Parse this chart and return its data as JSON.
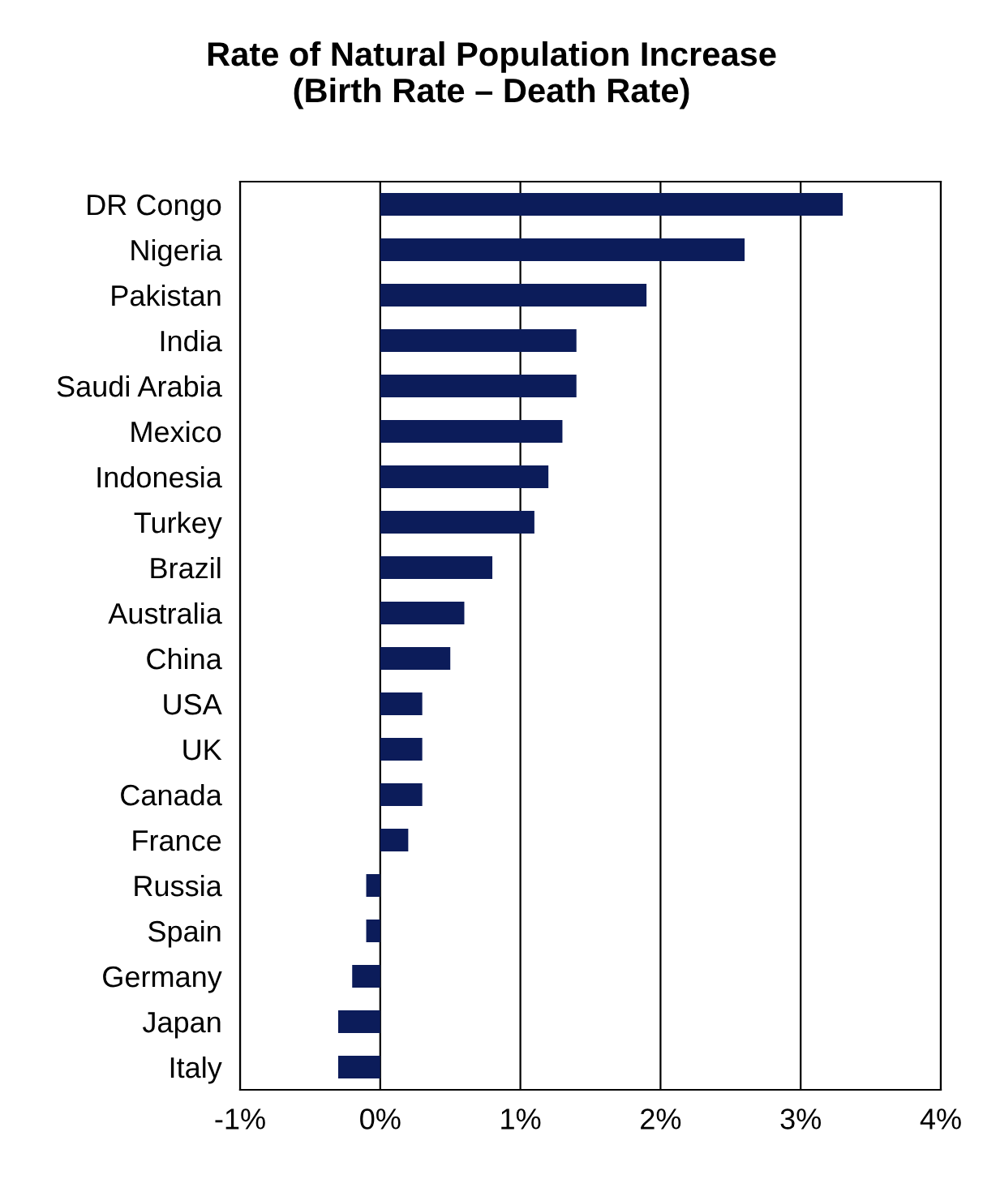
{
  "chart_data": {
    "type": "bar",
    "orientation": "horizontal",
    "title": "Rate of Natural Population Increase\n(Birth Rate – Death Rate)",
    "categories": [
      "DR Congo",
      "Nigeria",
      "Pakistan",
      "India",
      "Saudi Arabia",
      "Mexico",
      "Indonesia",
      "Turkey",
      "Brazil",
      "Australia",
      "China",
      "USA",
      "UK",
      "Canada",
      "France",
      "Russia",
      "Spain",
      "Germany",
      "Japan",
      "Italy"
    ],
    "values": [
      3.3,
      2.6,
      1.9,
      1.4,
      1.4,
      1.3,
      1.2,
      1.1,
      0.8,
      0.6,
      0.5,
      0.3,
      0.3,
      0.3,
      0.2,
      -0.1,
      -0.1,
      -0.2,
      -0.3,
      -0.3
    ],
    "color": "#0c1c5a",
    "xlim": [
      -1,
      4
    ],
    "xticks": [
      {
        "value": -1,
        "label": "-1%"
      },
      {
        "value": 0,
        "label": "0%"
      },
      {
        "value": 1,
        "label": "1%"
      },
      {
        "value": 2,
        "label": "2%"
      },
      {
        "value": 3,
        "label": "3%"
      },
      {
        "value": 4,
        "label": "4%"
      }
    ],
    "grid": "x",
    "legend": false
  }
}
